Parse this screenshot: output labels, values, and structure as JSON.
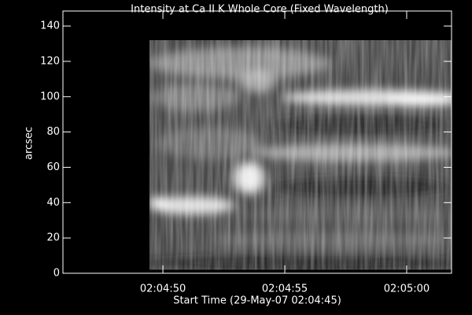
{
  "chart_data": {
    "type": "image",
    "title": "Intensity at Ca II K Whole Core (Fixed Wavelength)",
    "xlabel": "Start Time (29-May-07 02:04:45)",
    "ylabel": "arcsec",
    "xlim": [
      0.9,
      16.84
    ],
    "xticks": [
      {
        "value": 5,
        "label": "02:04:50"
      },
      {
        "value": 10,
        "label": "02:04:55"
      },
      {
        "value": 15,
        "label": "02:05:00"
      }
    ],
    "ylim": [
      0,
      148.5
    ],
    "yticks": [
      0,
      20,
      40,
      60,
      80,
      100,
      120,
      140
    ],
    "image_xlim": [
      4.45,
      16.84
    ],
    "image_ylim": [
      2,
      132
    ],
    "colormap": "gray",
    "background": "#000000",
    "foreground": "#ffffff"
  }
}
